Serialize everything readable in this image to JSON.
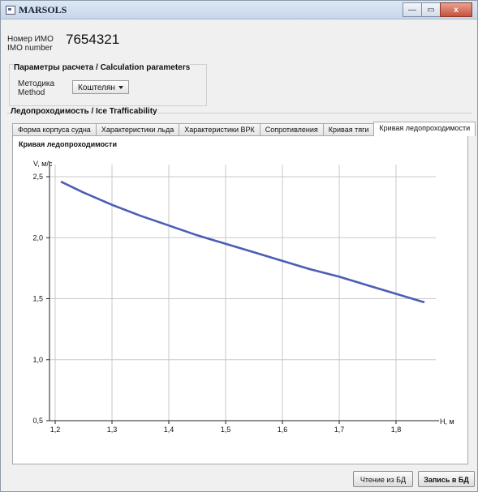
{
  "window": {
    "title": "MARSOLS",
    "icon": "app-window-icon",
    "buttons": {
      "minimize": "—",
      "maximize": "▭",
      "close": "x"
    }
  },
  "imo": {
    "label_ru": "Номер ИМО",
    "label_en": "IMO number",
    "value": "7654321"
  },
  "calc_params": {
    "title": "Параметры расчета / Calculation parameters",
    "method_label_ru": "Методика",
    "method_label_en": "Method",
    "method_value": "Коштелян"
  },
  "ice": {
    "title": "Ледопроходимость / Ice Trafficability",
    "tabs": [
      "Форма корпуса судна",
      "Характеристики льда",
      "Характеристики ВРК",
      "Сопротивления",
      "Кривая тяги",
      "Кривая ледопроходимости"
    ],
    "active_tab": 5
  },
  "chart_data": {
    "type": "line",
    "title": "Кривая ледопроходимости",
    "xlabel": "H, м",
    "ylabel": "V, м/с",
    "xlim": [
      1.19,
      1.87
    ],
    "ylim": [
      0.5,
      2.6
    ],
    "xticks": [
      "1,2",
      "1,3",
      "1,4",
      "1,5",
      "1,6",
      "1,7",
      "1,8"
    ],
    "xtick_values": [
      1.2,
      1.3,
      1.4,
      1.5,
      1.6,
      1.7,
      1.8
    ],
    "yticks": [
      "0,5",
      "1,0",
      "1,5",
      "2,0",
      "2,5"
    ],
    "ytick_values": [
      0.5,
      1.0,
      1.5,
      2.0,
      2.5
    ],
    "grid": true,
    "series": [
      {
        "color": "#4b5db5",
        "x": [
          1.21,
          1.25,
          1.3,
          1.35,
          1.4,
          1.45,
          1.5,
          1.55,
          1.6,
          1.65,
          1.7,
          1.75,
          1.8,
          1.85
        ],
        "y": [
          2.46,
          2.37,
          2.27,
          2.18,
          2.1,
          2.02,
          1.95,
          1.88,
          1.81,
          1.74,
          1.68,
          1.61,
          1.54,
          1.47
        ]
      }
    ]
  },
  "actions": {
    "read_db": "Чтение из БД",
    "write_db": "Запись в БД"
  }
}
